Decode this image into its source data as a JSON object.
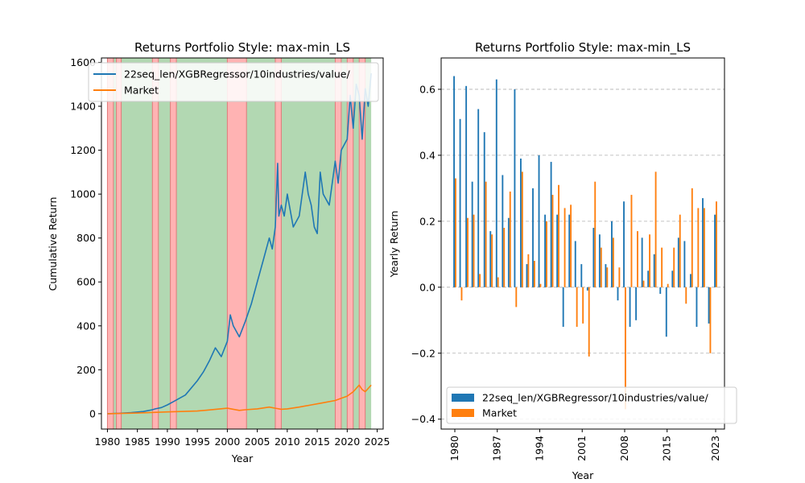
{
  "chart_data": [
    {
      "type": "line",
      "title": "Returns Portfolio Style: max-min_LS",
      "xlabel": "Year",
      "ylabel": "Cumulative Return",
      "xlim": [
        1979.0,
        2026.0
      ],
      "ylim": [
        -70,
        1620
      ],
      "xticks": [
        "1980",
        "1985",
        "1990",
        "1995",
        "2000",
        "2005",
        "2010",
        "2015",
        "2020",
        "2025"
      ],
      "yticks": [
        "0",
        "200",
        "400",
        "600",
        "800",
        "1000",
        "1200",
        "1400",
        "1600"
      ],
      "legend": "top-left",
      "series": [
        {
          "name": "22seq_len/XGBRegressor/10industries/value/",
          "color": "#1f77b4",
          "x": [
            1980,
            1982,
            1984,
            1986,
            1987.5,
            1988,
            1989,
            1990,
            1991,
            1993,
            1995,
            1996,
            1997,
            1998,
            1999,
            2000,
            2000.5,
            2001,
            2002,
            2003,
            2004,
            2005,
            2006,
            2007,
            2007.5,
            2008,
            2008.4,
            2008.6,
            2009,
            2009.5,
            2010,
            2011,
            2012,
            2013,
            2013.5,
            2014,
            2014.5,
            2015,
            2015.5,
            2016,
            2017,
            2017.5,
            2018,
            2018.5,
            2019,
            2020,
            2020.5,
            2021,
            2021.5,
            2022,
            2022.5,
            2023,
            2023.5,
            2024
          ],
          "y": [
            0,
            2,
            5,
            10,
            18,
            22,
            28,
            40,
            55,
            85,
            150,
            190,
            240,
            300,
            260,
            330,
            450,
            400,
            350,
            420,
            500,
            600,
            700,
            800,
            750,
            850,
            1140,
            900,
            950,
            900,
            1000,
            850,
            900,
            1100,
            1000,
            950,
            850,
            820,
            1100,
            1000,
            950,
            1050,
            1150,
            1050,
            1200,
            1250,
            1450,
            1300,
            1500,
            1450,
            1250,
            1480,
            1400,
            1550
          ]
        },
        {
          "name": "Market",
          "color": "#ff7f0e",
          "x": [
            1980,
            1985,
            1990,
            1995,
            2000,
            2001,
            2002,
            2003,
            2005,
            2007,
            2008,
            2009,
            2010,
            2012,
            2014,
            2016,
            2018,
            2019,
            2020,
            2021,
            2022,
            2022.5,
            2023,
            2024
          ],
          "y": [
            0,
            3,
            8,
            12,
            25,
            20,
            15,
            18,
            22,
            30,
            25,
            20,
            22,
            30,
            40,
            50,
            60,
            70,
            80,
            100,
            130,
            110,
            100,
            130
          ]
        }
      ],
      "regime_shading": {
        "green_color": "#b2d8b2",
        "red_color": "#ffb3b3",
        "green_range": [
          1980,
          2024
        ],
        "red_ranges": [
          [
            1980,
            1981
          ],
          [
            1981.5,
            1982.3
          ],
          [
            1987.5,
            1988.5
          ],
          [
            1990.5,
            1991.5
          ],
          [
            2000,
            2003.2
          ],
          [
            2008,
            2009
          ],
          [
            2018,
            2019
          ],
          [
            2020,
            2021
          ],
          [
            2022,
            2023
          ]
        ]
      }
    },
    {
      "type": "bar",
      "title": "Returns Portfolio Style: max-min_LS",
      "xlabel": "Year",
      "ylabel": "Yearly Return",
      "ylim": [
        -0.43,
        0.695
      ],
      "yticks": [
        "−0.4",
        "−0.2",
        "0.0",
        "0.2",
        "0.4",
        "0.6"
      ],
      "xtick_labels": [
        "1980",
        "1987",
        "1994",
        "2001",
        "2008",
        "2015",
        "2023"
      ],
      "xtick_years": [
        1980,
        1987,
        1994,
        2001,
        2008,
        2015,
        2023
      ],
      "grid": "y",
      "legend": "bottom-left",
      "categories": [
        1980,
        1981,
        1982,
        1983,
        1984,
        1985,
        1986,
        1987,
        1988,
        1989,
        1990,
        1991,
        1992,
        1993,
        1994,
        1995,
        1996,
        1997,
        1998,
        1999,
        2000,
        2001,
        2002,
        2003,
        2004,
        2005,
        2006,
        2007,
        2008,
        2009,
        2010,
        2011,
        2012,
        2013,
        2014,
        2015,
        2016,
        2017,
        2018,
        2019,
        2020,
        2021,
        2022,
        2023
      ],
      "series": [
        {
          "name": "22seq_len/XGBRegressor/10industries/value/",
          "color": "#1f77b4",
          "values": [
            0.64,
            0.51,
            0.61,
            0.32,
            0.54,
            0.47,
            0.17,
            0.63,
            0.34,
            0.21,
            0.6,
            0.39,
            0.07,
            0.3,
            0.4,
            0.22,
            0.38,
            0.22,
            -0.12,
            0.22,
            0.14,
            0.07,
            -0.01,
            0.18,
            0.16,
            0.07,
            0.2,
            -0.04,
            0.26,
            -0.12,
            -0.1,
            0.15,
            0.05,
            0.1,
            -0.02,
            -0.15,
            0.05,
            0.15,
            0.14,
            0.04,
            -0.12,
            0.27,
            -0.11,
            0.22
          ]
        },
        {
          "name": "Market",
          "color": "#ff7f0e",
          "values": [
            0.33,
            -0.04,
            0.21,
            0.22,
            0.04,
            0.32,
            0.16,
            0.03,
            0.18,
            0.29,
            -0.06,
            0.35,
            0.1,
            0.08,
            0.01,
            0.2,
            0.28,
            0.31,
            0.24,
            0.25,
            -0.12,
            -0.11,
            -0.21,
            0.32,
            0.12,
            0.06,
            0.15,
            0.06,
            -0.37,
            0.28,
            0.17,
            0.02,
            0.16,
            0.35,
            0.12,
            0.01,
            0.12,
            0.22,
            -0.05,
            0.3,
            0.24,
            0.24,
            -0.2,
            0.26
          ]
        }
      ]
    }
  ]
}
